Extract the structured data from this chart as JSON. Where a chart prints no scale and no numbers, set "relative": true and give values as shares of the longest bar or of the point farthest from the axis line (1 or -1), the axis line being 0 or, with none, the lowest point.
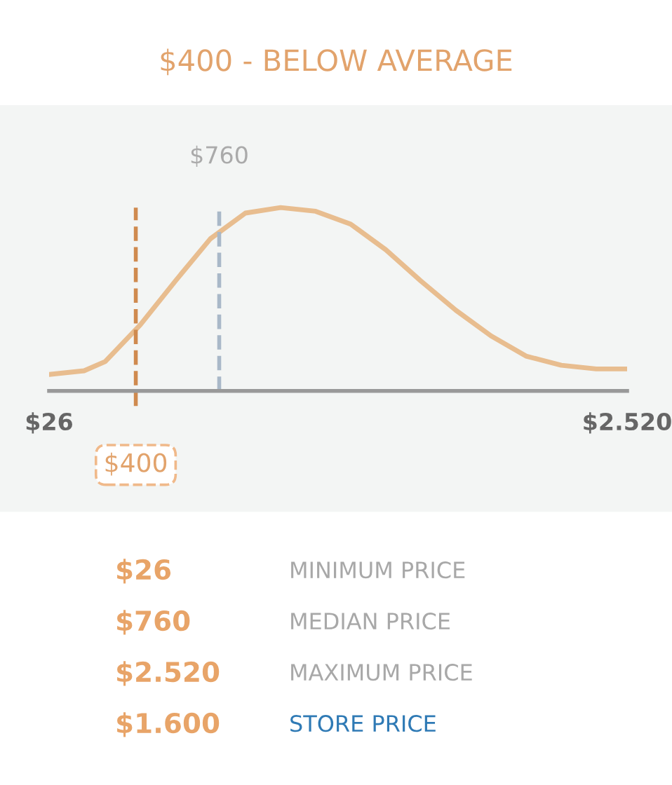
{
  "chart_data": {
    "type": "line",
    "title": "$400 - BELOW AVERAGE",
    "relative": true,
    "legend": false,
    "grid": false,
    "x": [
      26,
      177,
      268,
      419,
      571,
      722,
      873,
      1025,
      1176,
      1327,
      1479,
      1630,
      1781,
      1933,
      2084,
      2236,
      2387,
      2520
    ],
    "series": [
      {
        "color": "#e8bd8f",
        "values": [
          0.09,
          0.11,
          0.16,
          0.36,
          0.6,
          0.83,
          0.97,
          1.0,
          0.98,
          0.91,
          0.77,
          0.6,
          0.44,
          0.3,
          0.19,
          0.14,
          0.12,
          0.12
        ]
      }
    ],
    "xlim": [
      26,
      2520
    ],
    "xticks": [
      {
        "value": 26,
        "label": "$26"
      },
      {
        "value": 2520,
        "label": "$2.520"
      }
    ],
    "ref_lines": [
      {
        "axis": "x",
        "value": 400,
        "label": "$400",
        "color": "#cf8a4f",
        "line_style": "dashed"
      },
      {
        "axis": "x",
        "value": 760,
        "label": "$760",
        "color": "#a9b8c8",
        "line_style": "dashed"
      }
    ],
    "annotations": [
      "$26",
      "MINIMUM PRICE",
      "$760",
      "MEDIAN PRICE",
      "$2.520",
      "MAXIMUM PRICE",
      "$1.600",
      "STORE PRICE"
    ]
  }
}
